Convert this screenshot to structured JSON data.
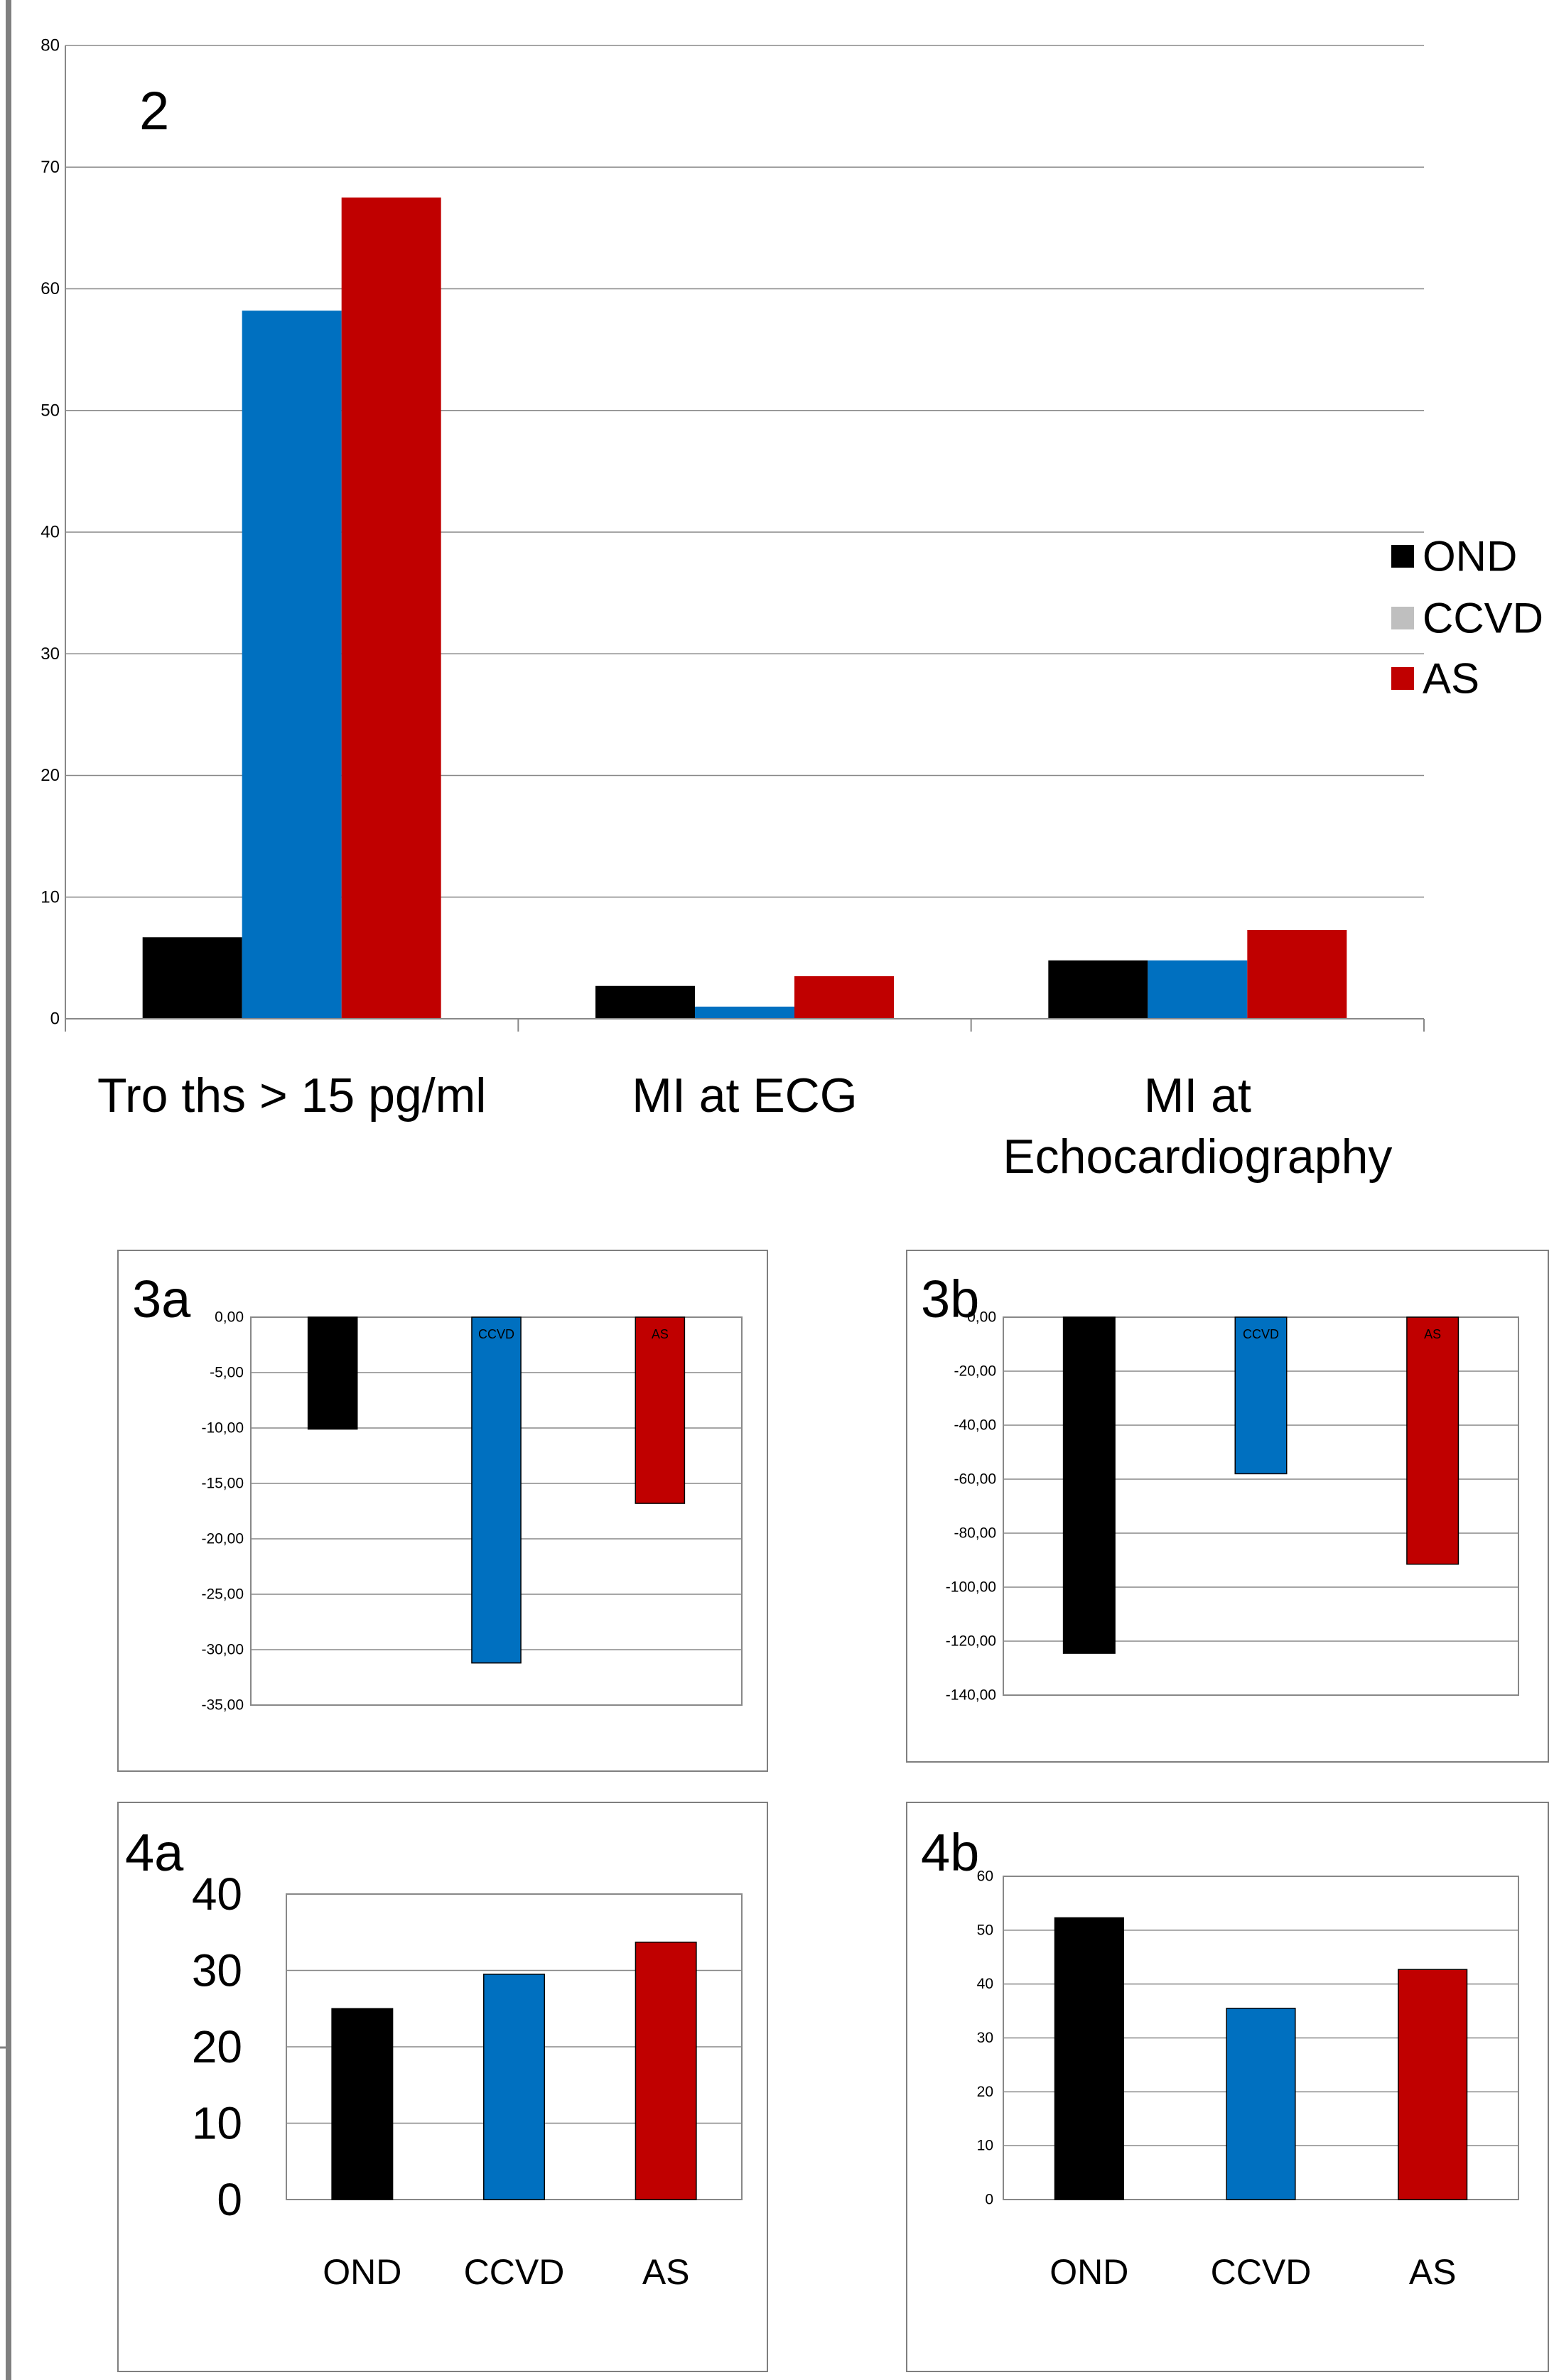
{
  "colors": {
    "OND": "#000000",
    "CCVD": "#0070C0",
    "AS": "#C00000",
    "legend_CCVD_swatch": "#BFBFBF",
    "grid": "#888888",
    "axis": "#888888",
    "frame": "#7F7F7F",
    "left_rule": "#808080"
  },
  "chart_data": [
    {
      "id": "2",
      "type": "bar",
      "label": "2",
      "categories": [
        "Tro ths > 15 pg/ml",
        "MI at ECG",
        "MI at Echocardiography"
      ],
      "category_lines": [
        [
          "Tro ths > 15 pg/ml"
        ],
        [
          "MI at ECG"
        ],
        [
          "MI at",
          "Echocardiography"
        ]
      ],
      "series": [
        {
          "name": "OND",
          "values": [
            6.7,
            2.7,
            4.8
          ]
        },
        {
          "name": "CCVD",
          "values": [
            58.2,
            1.0,
            4.8
          ]
        },
        {
          "name": "AS",
          "values": [
            67.5,
            3.5,
            7.3
          ]
        }
      ],
      "ylim": [
        0,
        80
      ],
      "yticks": [
        "0",
        "10",
        "20",
        "30",
        "40",
        "50",
        "60",
        "70",
        "80"
      ],
      "grid": true,
      "legend": {
        "placement": "right",
        "entries": [
          "OND",
          "CCVD",
          "AS"
        ]
      }
    },
    {
      "id": "3a",
      "type": "bar",
      "label": "3a",
      "categories": [
        "OND",
        "CCVD",
        "AS"
      ],
      "bar_labels": [
        "",
        "CCVD",
        "AS"
      ],
      "values": [
        -10.1,
        -31.2,
        -16.8
      ],
      "ylim": [
        -35,
        0
      ],
      "yticks": [
        "0,00",
        "-5,00",
        "-10,00",
        "-15,00",
        "-20,00",
        "-25,00",
        "-30,00",
        "-35,00"
      ],
      "grid": true
    },
    {
      "id": "3b",
      "type": "bar",
      "label": "3b",
      "categories": [
        "OND",
        "CCVD",
        "AS"
      ],
      "bar_labels": [
        "",
        "CCVD",
        "AS"
      ],
      "values": [
        -124.5,
        -58.0,
        -91.5
      ],
      "ylim": [
        -140,
        0
      ],
      "yticks": [
        "0,00",
        "-20,00",
        "-40,00",
        "-60,00",
        "-80,00",
        "-100,00",
        "-120,00",
        "-140,00"
      ],
      "grid": true
    },
    {
      "id": "4a",
      "type": "bar",
      "label": "4a",
      "categories": [
        "OND",
        "CCVD",
        "AS"
      ],
      "values": [
        25.0,
        29.5,
        33.7
      ],
      "ylim": [
        0,
        40
      ],
      "yticks": [
        "0",
        "10",
        "20",
        "30",
        "40"
      ],
      "grid": true
    },
    {
      "id": "4b",
      "type": "bar",
      "label": "4b",
      "categories": [
        "OND",
        "CCVD",
        "AS"
      ],
      "values": [
        52.3,
        35.5,
        42.7
      ],
      "ylim": [
        0,
        60
      ],
      "yticks": [
        "0",
        "10",
        "20",
        "30",
        "40",
        "50",
        "60"
      ],
      "grid": true
    }
  ]
}
